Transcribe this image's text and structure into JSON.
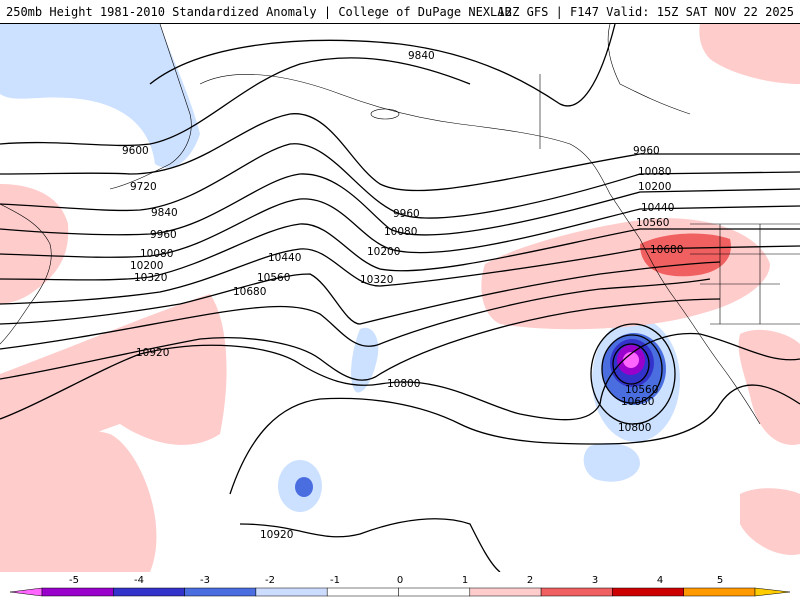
{
  "header": {
    "title_left": "250mb Height 1981-2010 Standardized Anomaly | College of DuPage NEXLAB",
    "title_right": "12Z GFS | F147 Valid: 15Z SAT NOV 22 2025"
  },
  "contour_labels": [
    "9840",
    "9600",
    "9720",
    "9840",
    "9960",
    "10080",
    "10200",
    "10320",
    "9960",
    "10080",
    "10200",
    "10320",
    "10440",
    "10560",
    "10680",
    "10800",
    "10920",
    "9960",
    "10080",
    "10200",
    "10440",
    "10560",
    "10680",
    "10560",
    "10680",
    "10800",
    "10920"
  ],
  "colorbar": {
    "tick_labels": [
      "-5",
      "-4",
      "-3",
      "-2",
      "-1",
      "0",
      "1",
      "2",
      "3",
      "4",
      "5"
    ],
    "colors": [
      "#ff66ff",
      "#9900cc",
      "#3333cc",
      "#4a6ee0",
      "#ccdcff",
      "#ffffff",
      "#ffffff",
      "#ffcccc",
      "#f06060",
      "#cc0000",
      "#ff9900",
      "#ffcc00"
    ]
  }
}
